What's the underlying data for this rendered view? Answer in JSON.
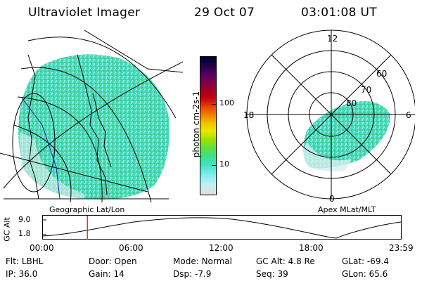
{
  "header": {
    "instrument": "Ultraviolet Imager",
    "date": "29 Oct 07",
    "time": "03:01:08 UT"
  },
  "colorbar": {
    "unit_label": "photon cm-2s-1",
    "ticks": [
      "100",
      "10"
    ],
    "colors": [
      "#000030",
      "#200040",
      "#500060",
      "#7a0050",
      "#a00020",
      "#c80010",
      "#e64000",
      "#f08000",
      "#f0c000",
      "#e8e800",
      "#a0e000",
      "#60e040",
      "#40e080",
      "#40e0c0",
      "#80f0f0",
      "#c0f0f0",
      "#e0e0e0"
    ]
  },
  "left_map": {
    "label": "Geographic Lat/Lon"
  },
  "right_map": {
    "label": "Apex MLat/MLT",
    "hour_labels": {
      "top": "12",
      "left": "18",
      "right": "6",
      "bottom": "0"
    },
    "lat_labels": [
      "60",
      "70",
      "80"
    ]
  },
  "altitude_plot": {
    "ylabel": "GC Alt",
    "yticks": [
      "9.0",
      "1.8"
    ],
    "xticks": [
      "00:00",
      "06:00",
      "12:00",
      "18:00",
      "23:59"
    ],
    "current_time_hours": 3.02
  },
  "status": {
    "row1": [
      {
        "label": "Flt:",
        "value": "LBHL"
      },
      {
        "label": "Door:",
        "value": "Open"
      },
      {
        "label": "Mode:",
        "value": "Normal"
      },
      {
        "label": "GC Alt:",
        "value": "4.8 Re"
      },
      {
        "label": "GLat:",
        "value": "-69.4"
      }
    ],
    "row2": [
      {
        "label": "IP:",
        "value": "36.0"
      },
      {
        "label": "Gain:",
        "value": "14"
      },
      {
        "label": "Dsp:",
        "value": "-7.9"
      },
      {
        "label": "Seq:",
        "value": "39"
      },
      {
        "label": "GLon:",
        "value": "65.6"
      }
    ]
  }
}
